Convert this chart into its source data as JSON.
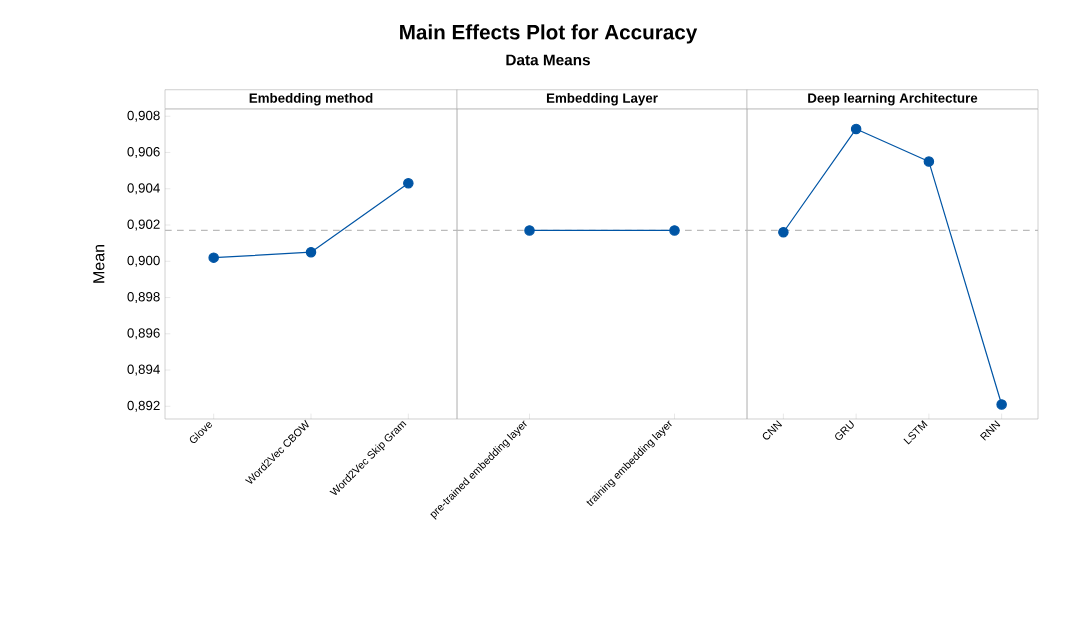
{
  "chart_data": [
    {
      "type": "other",
      "title": "Main Effects Plot for Accuracy",
      "subtitle": "Data Means"
    },
    {
      "type": "line",
      "title": "Embedding method",
      "ylabel": "Mean",
      "categories": [
        "Glove",
        "Word2Vec CBOW",
        "Word2Vec Skip Gram"
      ],
      "series": [
        {
          "color": "#0055a5",
          "values": [
            0.9002,
            0.9005,
            0.9043
          ]
        }
      ],
      "ylim": [
        0.8913,
        0.9084
      ],
      "yticks": [
        {
          "value": 0.892,
          "label": "0,892"
        },
        {
          "value": 0.894,
          "label": "0,894"
        },
        {
          "value": 0.896,
          "label": "0,896"
        },
        {
          "value": 0.898,
          "label": "0,898"
        },
        {
          "value": 0.9,
          "label": "0,900"
        },
        {
          "value": 0.902,
          "label": "0,902"
        },
        {
          "value": 0.904,
          "label": "0,904"
        },
        {
          "value": 0.906,
          "label": "0,906"
        },
        {
          "value": 0.908,
          "label": "0,908"
        }
      ],
      "ref_lines": [
        {
          "axis": "y",
          "value": 0.9017,
          "color": "#bbbbbb",
          "line_style": "dashed"
        }
      ],
      "marker": "circle",
      "line_style": "solid"
    },
    {
      "type": "line",
      "title": "Embedding Layer",
      "categories": [
        "pre-trained embedding layer",
        "training embedding layer"
      ],
      "series": [
        {
          "color": "#0055a5",
          "values": [
            0.9017,
            0.9017
          ]
        }
      ],
      "ylim": [
        0.8913,
        0.9084
      ],
      "tick_labels": "x",
      "ref_lines": [
        {
          "axis": "y",
          "value": 0.9017,
          "color": "#bbbbbb",
          "line_style": "dashed"
        }
      ],
      "marker": "circle",
      "line_style": "solid"
    },
    {
      "type": "line",
      "title": "Deep learning Architecture",
      "categories": [
        "CNN",
        "GRU",
        "LSTM",
        "RNN"
      ],
      "series": [
        {
          "color": "#0055a5",
          "values": [
            0.9016,
            0.9073,
            0.9055,
            0.8921
          ]
        }
      ],
      "ylim": [
        0.8913,
        0.9084
      ],
      "tick_labels": "x",
      "ref_lines": [
        {
          "axis": "y",
          "value": 0.9017,
          "color": "#bbbbbb",
          "line_style": "dashed"
        }
      ],
      "marker": "circle",
      "line_style": "solid"
    }
  ]
}
